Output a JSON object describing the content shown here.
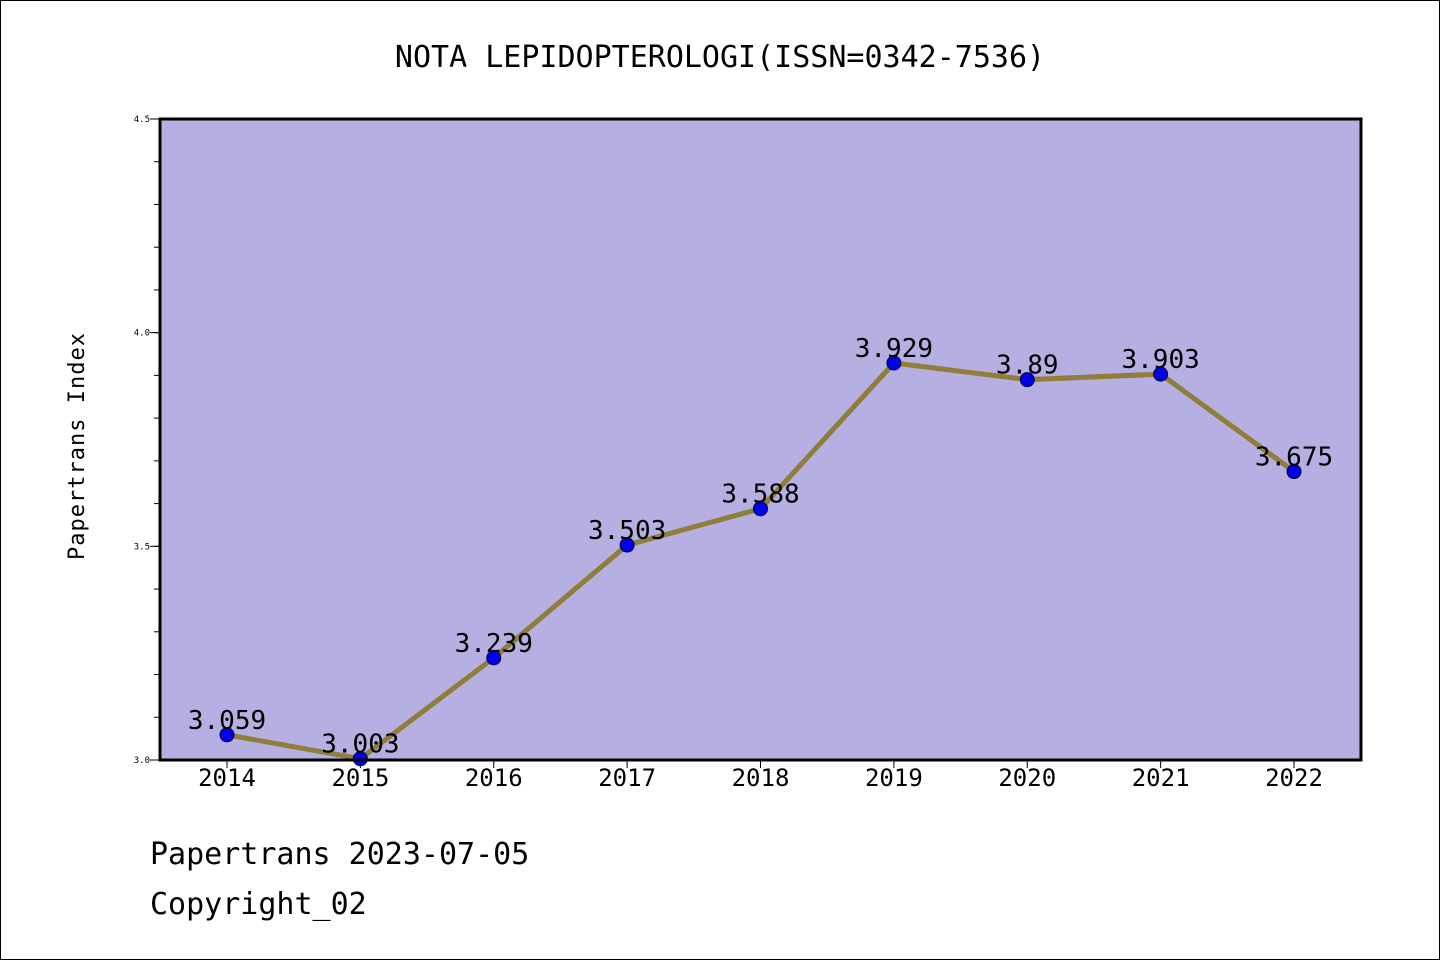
{
  "chart_data": {
    "type": "line",
    "title": "NOTA LEPIDOPTEROLOGI(ISSN=0342-7536)",
    "ylabel": "Papertrans Index",
    "xlabel": "",
    "categories": [
      "2014",
      "2015",
      "2016",
      "2017",
      "2018",
      "2019",
      "2020",
      "2021",
      "2022"
    ],
    "values": [
      3.059,
      3.003,
      3.239,
      3.503,
      3.588,
      3.929,
      3.89,
      3.903,
      3.675
    ],
    "data_labels": [
      "3.059",
      "3.003",
      "3.239",
      "3.503",
      "3.588",
      "3.929",
      "3.89",
      "3.903",
      "3.675"
    ],
    "ylim": [
      3.0,
      4.5
    ],
    "y_major_ticks": [
      "3.0",
      "3.5",
      "4.0",
      "4.5"
    ],
    "grid": false,
    "colors": {
      "plot_background": "#b5afe2",
      "line": "#8f7d3a",
      "marker": "#0000ee",
      "axes": "#000000"
    }
  },
  "footer": {
    "line1": "Papertrans 2023-07-05",
    "line2": "Copyright_02"
  }
}
